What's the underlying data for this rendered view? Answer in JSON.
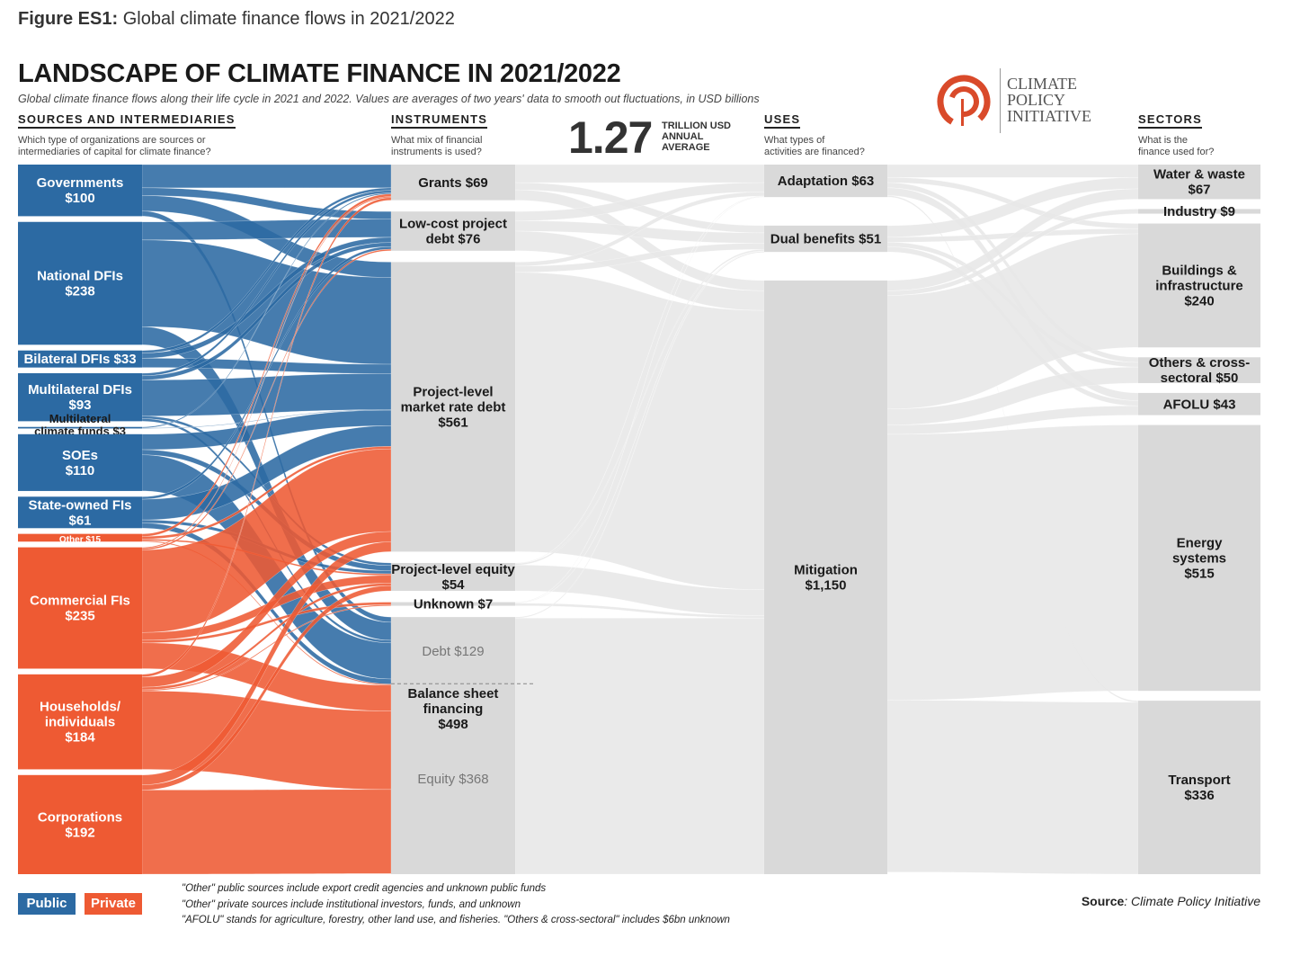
{
  "figure": {
    "label": "Figure ES1:",
    "caption": "Global climate finance flows in 2021/2022"
  },
  "title": "LANDSCAPE OF CLIMATE FINANCE IN 2021/2022",
  "subtitle": "Global climate finance flows along their life cycle in 2021 and 2022. Values are averages of two years' data to smooth out fluctuations, in USD billions",
  "total": {
    "value": "1.27",
    "unit_line1": "TRILLION USD",
    "unit_line2": "ANNUAL",
    "unit_line3": "AVERAGE"
  },
  "logo": {
    "line1": "CLIMATE",
    "line2": "POLICY",
    "line3": "INITIATIVE"
  },
  "columns": {
    "sources": {
      "title": "SOURCES AND INTERMEDIARIES",
      "question1": "Which type of organizations are sources or",
      "question2": "intermediaries of capital for climate finance?"
    },
    "instruments": {
      "title": "INSTRUMENTS",
      "question1": "What mix of financial",
      "question2": "instruments is used?"
    },
    "uses": {
      "title": "USES",
      "question1": "What types of",
      "question2": "activities are financed?"
    },
    "sectors": {
      "title": "SECTORS",
      "question1": "What is the",
      "question2": "finance used for?"
    }
  },
  "colors": {
    "public": "#2c6aa3",
    "private": "#ee5a33",
    "node_gray": "#d9d9d9",
    "flow_gray": "#e8e8e8"
  },
  "chart_data": {
    "type": "sankey",
    "units": "USD billions",
    "total": 1270,
    "sources": [
      {
        "name": "Governments",
        "label": [
          "Governments",
          "$100"
        ],
        "value": 100,
        "group": "public"
      },
      {
        "name": "National DFIs",
        "label": [
          "National DFIs",
          "$238"
        ],
        "value": 238,
        "group": "public"
      },
      {
        "name": "Bilateral DFIs",
        "label": [
          "Bilateral DFIs $33"
        ],
        "value": 33,
        "group": "public"
      },
      {
        "name": "Multilateral DFIs",
        "label": [
          "Multilateral DFIs",
          "$93"
        ],
        "value": 93,
        "group": "public"
      },
      {
        "name": "Multilateral climate funds",
        "label": [
          "Multilateral",
          "climate funds $3"
        ],
        "value": 3,
        "group": "public"
      },
      {
        "name": "SOEs",
        "label": [
          "SOEs",
          "$110"
        ],
        "value": 110,
        "group": "public"
      },
      {
        "name": "State-owned FIs",
        "label": [
          "State-owned FIs",
          "$61"
        ],
        "value": 61,
        "group": "public"
      },
      {
        "name": "Other",
        "label": [
          "Other $15"
        ],
        "value": 15,
        "group": "private"
      },
      {
        "name": "Commercial FIs",
        "label": [
          "Commercial FIs",
          "$235"
        ],
        "value": 235,
        "group": "private"
      },
      {
        "name": "Households/individuals",
        "label": [
          "Households/",
          "individuals",
          "$184"
        ],
        "value": 184,
        "group": "private"
      },
      {
        "name": "Corporations",
        "label": [
          "Corporations",
          "$192"
        ],
        "value": 192,
        "group": "private"
      }
    ],
    "instruments": [
      {
        "name": "Grants",
        "label": [
          "Grants $69"
        ],
        "value": 69
      },
      {
        "name": "Low-cost project debt",
        "label": [
          "Low-cost project",
          "debt $76"
        ],
        "value": 76
      },
      {
        "name": "Project-level market rate debt",
        "label": [
          "Project-level",
          "market rate debt",
          "$561"
        ],
        "value": 561
      },
      {
        "name": "Project-level equity",
        "label": [
          "Project-level equity",
          "$54"
        ],
        "value": 54
      },
      {
        "name": "Unknown",
        "label": [
          "Unknown $7"
        ],
        "value": 7
      },
      {
        "name": "Balance sheet financing",
        "label": [
          "Balance sheet",
          "financing",
          "$498"
        ],
        "value": 498,
        "breakdown": [
          {
            "name": "Debt",
            "label": "Debt $129",
            "value": 129
          },
          {
            "name": "Equity",
            "label": "Equity $368",
            "value": 368
          }
        ]
      }
    ],
    "uses": [
      {
        "name": "Adaptation",
        "label": [
          "Adaptation $63"
        ],
        "value": 63
      },
      {
        "name": "Dual benefits",
        "label": [
          "Dual benefits $51"
        ],
        "value": 51
      },
      {
        "name": "Mitigation",
        "label": [
          "Mitigation",
          "$1,150"
        ],
        "value": 1150
      }
    ],
    "sectors": [
      {
        "name": "Water & waste",
        "label": [
          "Water & waste",
          "$67"
        ],
        "value": 67
      },
      {
        "name": "Industry",
        "label": [
          "Industry $9"
        ],
        "value": 9
      },
      {
        "name": "Buildings & infrastructure",
        "label": [
          "Buildings &",
          "infrastructure",
          "$240"
        ],
        "value": 240
      },
      {
        "name": "Others & cross-sectoral",
        "label": [
          "Others & cross-",
          "sectoral $50"
        ],
        "value": 50
      },
      {
        "name": "AFOLU",
        "label": [
          "AFOLU $43"
        ],
        "value": 43
      },
      {
        "name": "Energy systems",
        "label": [
          "Energy",
          "systems",
          "$515"
        ],
        "value": 515
      },
      {
        "name": "Transport",
        "label": [
          "Transport",
          "$336"
        ],
        "value": 336
      }
    ],
    "flows_source_instrument": [
      {
        "from": "Governments",
        "to": "Grants",
        "value": 45
      },
      {
        "from": "Governments",
        "to": "Low-cost project debt",
        "value": 15
      },
      {
        "from": "Governments",
        "to": "Project-level market rate debt",
        "value": 30
      },
      {
        "from": "Governments",
        "to": "Balance sheet financing",
        "value": 10
      },
      {
        "from": "National DFIs",
        "to": "Low-cost project debt",
        "value": 35
      },
      {
        "from": "National DFIs",
        "to": "Project-level market rate debt",
        "value": 168
      },
      {
        "from": "National DFIs",
        "to": "Balance sheet financing",
        "value": 35
      },
      {
        "from": "Bilateral DFIs",
        "to": "Grants",
        "value": 5
      },
      {
        "from": "Bilateral DFIs",
        "to": "Low-cost project debt",
        "value": 10
      },
      {
        "from": "Bilateral DFIs",
        "to": "Project-level market rate debt",
        "value": 18
      },
      {
        "from": "Multilateral DFIs",
        "to": "Grants",
        "value": 5
      },
      {
        "from": "Multilateral DFIs",
        "to": "Low-cost project debt",
        "value": 8
      },
      {
        "from": "Multilateral DFIs",
        "to": "Project-level market rate debt",
        "value": 70
      },
      {
        "from": "Multilateral DFIs",
        "to": "Project-level equity",
        "value": 5
      },
      {
        "from": "Multilateral DFIs",
        "to": "Balance sheet financing",
        "value": 5
      },
      {
        "from": "Multilateral climate funds",
        "to": "Grants",
        "value": 2
      },
      {
        "from": "Multilateral climate funds",
        "to": "Project-level market rate debt",
        "value": 1
      },
      {
        "from": "SOEs",
        "to": "Project-level market rate debt",
        "value": 30
      },
      {
        "from": "SOEs",
        "to": "Project-level equity",
        "value": 10
      },
      {
        "from": "SOEs",
        "to": "Balance sheet financing",
        "value": 70
      },
      {
        "from": "State-owned FIs",
        "to": "Low-cost project debt",
        "value": 5
      },
      {
        "from": "State-owned FIs",
        "to": "Project-level market rate debt",
        "value": 40
      },
      {
        "from": "State-owned FIs",
        "to": "Project-level equity",
        "value": 6
      },
      {
        "from": "State-owned FIs",
        "to": "Balance sheet financing",
        "value": 10
      },
      {
        "from": "Other",
        "to": "Grants",
        "value": 5
      },
      {
        "from": "Other",
        "to": "Project-level market rate debt",
        "value": 5
      },
      {
        "from": "Other",
        "to": "Project-level equity",
        "value": 3
      },
      {
        "from": "Other",
        "to": "Balance sheet financing",
        "value": 2
      },
      {
        "from": "Commercial FIs",
        "to": "Grants",
        "value": 2
      },
      {
        "from": "Commercial FIs",
        "to": "Low-cost project debt",
        "value": 3
      },
      {
        "from": "Commercial FIs",
        "to": "Project-level market rate debt",
        "value": 160
      },
      {
        "from": "Commercial FIs",
        "to": "Project-level equity",
        "value": 15
      },
      {
        "from": "Commercial FIs",
        "to": "Unknown",
        "value": 5
      },
      {
        "from": "Commercial FIs",
        "to": "Balance sheet financing",
        "value": 50
      },
      {
        "from": "Households/individuals",
        "to": "Grants",
        "value": 5
      },
      {
        "from": "Households/individuals",
        "to": "Project-level market rate debt",
        "value": 20
      },
      {
        "from": "Households/individuals",
        "to": "Project-level equity",
        "value": 5
      },
      {
        "from": "Households/individuals",
        "to": "Unknown",
        "value": 2
      },
      {
        "from": "Households/individuals",
        "to": "Balance sheet financing",
        "value": 152
      },
      {
        "from": "Corporations",
        "to": "Project-level market rate debt",
        "value": 19
      },
      {
        "from": "Corporations",
        "to": "Project-level equity",
        "value": 10
      },
      {
        "from": "Corporations",
        "to": "Balance sheet financing",
        "value": 163
      }
    ],
    "flows_instrument_use": [
      {
        "from": "Grants",
        "to": "Adaptation",
        "value": 35
      },
      {
        "from": "Grants",
        "to": "Dual benefits",
        "value": 14
      },
      {
        "from": "Grants",
        "to": "Mitigation",
        "value": 20
      },
      {
        "from": "Low-cost project debt",
        "to": "Adaptation",
        "value": 18
      },
      {
        "from": "Low-cost project debt",
        "to": "Dual benefits",
        "value": 20
      },
      {
        "from": "Low-cost project debt",
        "to": "Mitigation",
        "value": 38
      },
      {
        "from": "Project-level market rate debt",
        "to": "Adaptation",
        "value": 8
      },
      {
        "from": "Project-level market rate debt",
        "to": "Dual benefits",
        "value": 12
      },
      {
        "from": "Project-level market rate debt",
        "to": "Mitigation",
        "value": 541
      },
      {
        "from": "Project-level equity",
        "to": "Adaptation",
        "value": 1
      },
      {
        "from": "Project-level equity",
        "to": "Dual benefits",
        "value": 3
      },
      {
        "from": "Project-level equity",
        "to": "Mitigation",
        "value": 50
      },
      {
        "from": "Unknown",
        "to": "Adaptation",
        "value": 1
      },
      {
        "from": "Unknown",
        "to": "Dual benefits",
        "value": 1
      },
      {
        "from": "Unknown",
        "to": "Mitigation",
        "value": 5
      },
      {
        "from": "Balance sheet financing",
        "to": "Dual benefits",
        "value": 2
      },
      {
        "from": "Balance sheet financing",
        "to": "Mitigation",
        "value": 496
      }
    ],
    "flows_use_sector": [
      {
        "from": "Adaptation",
        "to": "Water & waste",
        "value": 25
      },
      {
        "from": "Adaptation",
        "to": "Buildings & infrastructure",
        "value": 10
      },
      {
        "from": "Adaptation",
        "to": "Others & cross-sectoral",
        "value": 10
      },
      {
        "from": "Adaptation",
        "to": "AFOLU",
        "value": 15
      },
      {
        "from": "Adaptation",
        "to": "Transport",
        "value": 3
      },
      {
        "from": "Dual benefits",
        "to": "Water & waste",
        "value": 22
      },
      {
        "from": "Dual benefits",
        "to": "Buildings & infrastructure",
        "value": 10
      },
      {
        "from": "Dual benefits",
        "to": "Others & cross-sectoral",
        "value": 9
      },
      {
        "from": "Dual benefits",
        "to": "AFOLU",
        "value": 10
      },
      {
        "from": "Mitigation",
        "to": "Water & waste",
        "value": 20
      },
      {
        "from": "Mitigation",
        "to": "Industry",
        "value": 9
      },
      {
        "from": "Mitigation",
        "to": "Buildings & infrastructure",
        "value": 220
      },
      {
        "from": "Mitigation",
        "to": "Others & cross-sectoral",
        "value": 31
      },
      {
        "from": "Mitigation",
        "to": "AFOLU",
        "value": 18
      },
      {
        "from": "Mitigation",
        "to": "Energy systems",
        "value": 515
      },
      {
        "from": "Mitigation",
        "to": "Transport",
        "value": 333
      }
    ]
  },
  "legend": {
    "public": "Public",
    "private": "Private"
  },
  "notes": [
    "\"Other\" public sources include export credit agencies and unknown public funds",
    "\"Other\" private sources include institutional investors, funds, and unknown",
    "\"AFOLU\" stands for agriculture, forestry, other land use, and fisheries. \"Others & cross-sectoral\" includes $6bn unknown"
  ],
  "source": {
    "label": "Source",
    "text": ": Climate Policy Initiative"
  }
}
